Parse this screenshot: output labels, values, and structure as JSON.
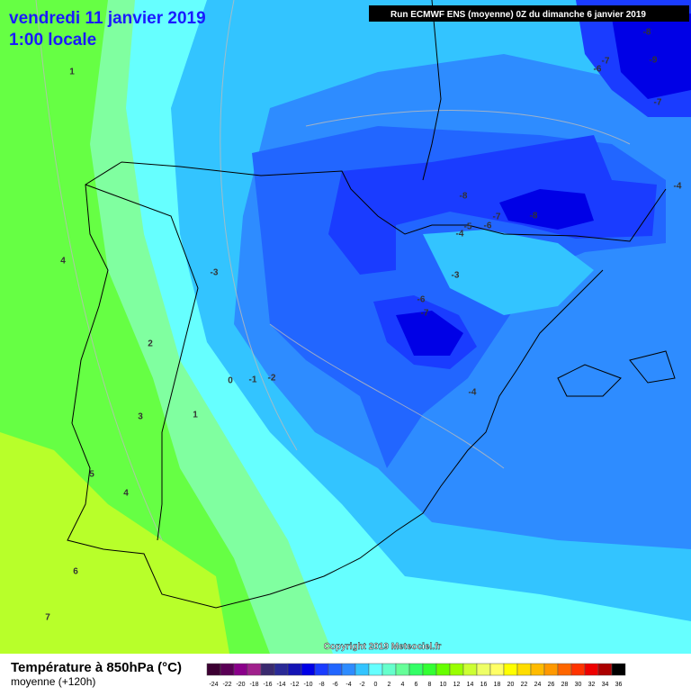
{
  "header": {
    "date": "vendredi 11 janvier 2019",
    "time": "1:00 locale",
    "run": "Run ECMWF ENS (moyenne) 0Z du dimanche 6 janvier 2019"
  },
  "map": {
    "contour_labels": [
      1,
      4,
      2,
      3,
      1,
      0,
      -1,
      -2,
      5,
      4,
      6,
      7,
      -3,
      -8,
      -7,
      -8,
      -6,
      -5,
      -4,
      -3,
      -6,
      -7,
      -4,
      -8,
      -7,
      -6,
      -9,
      -7,
      -4
    ]
  },
  "copyright": "Copyright 2019 Meteociel.fr",
  "legend": {
    "title": "Température à 850hPa (°C)",
    "subtitle": "moyenne  (+120h)",
    "ticks": [
      -24,
      -22,
      -20,
      -18,
      -16,
      -14,
      -12,
      -10,
      -8,
      -6,
      -4,
      -2,
      0,
      2,
      4,
      6,
      8,
      10,
      12,
      14,
      16,
      18,
      20,
      22,
      24,
      26,
      28,
      30,
      32,
      34,
      36
    ],
    "colors": [
      "#3c0032",
      "#5a0055",
      "#8a008a",
      "#a0208c",
      "#3a2a6e",
      "#2a2a96",
      "#1414b4",
      "#0000e6",
      "#1a3cff",
      "#2266ff",
      "#2e8cff",
      "#33c4ff",
      "#66ffff",
      "#66ffcc",
      "#66ff99",
      "#33ff66",
      "#33ff33",
      "#66ff00",
      "#99ff00",
      "#ccff33",
      "#eeff66",
      "#ffff66",
      "#ffff00",
      "#ffdd00",
      "#ffbb00",
      "#ff9900",
      "#ff6600",
      "#ff3300",
      "#ee0000",
      "#aa0000",
      "#000000"
    ]
  }
}
